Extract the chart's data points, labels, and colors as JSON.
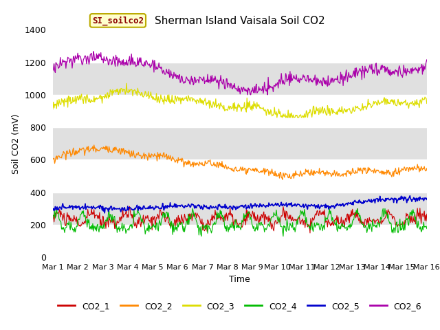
{
  "title": "Sherman Island Vaisala Soil CO2",
  "ylabel": "Soil CO2 (mV)",
  "xlabel": "Time",
  "watermark": "SI_soilco2",
  "xlim": [
    0,
    15
  ],
  "ylim": [
    0,
    1400
  ],
  "yticks": [
    0,
    200,
    400,
    600,
    800,
    1000,
    1200,
    1400
  ],
  "xtick_labels": [
    "Mar 1",
    "Mar 2",
    "Mar 3",
    "Mar 4",
    "Mar 5",
    "Mar 6",
    "Mar 7",
    "Mar 8",
    "Mar 9",
    "Mar 10",
    "Mar 11",
    "Mar 12",
    "Mar 13",
    "Mar 14",
    "Mar 15",
    "Mar 16"
  ],
  "legend_entries": [
    "CO2_1",
    "CO2_2",
    "CO2_3",
    "CO2_4",
    "CO2_5",
    "CO2_6"
  ],
  "line_colors": {
    "CO2_1": "#cc0000",
    "CO2_2": "#ff8800",
    "CO2_3": "#dddd00",
    "CO2_4": "#00bb00",
    "CO2_5": "#0000cc",
    "CO2_6": "#aa00aa"
  },
  "background_color": "#ffffff",
  "plot_bg_color": "#e0e0e0",
  "band_colors": [
    "#ffffff",
    "#e0e0e0"
  ],
  "band_ranges": [
    [
      0,
      200
    ],
    [
      200,
      400
    ],
    [
      400,
      600
    ],
    [
      600,
      800
    ],
    [
      800,
      1000
    ],
    [
      1000,
      1200
    ],
    [
      1200,
      1400
    ]
  ],
  "n_points": 600,
  "seed": 42
}
